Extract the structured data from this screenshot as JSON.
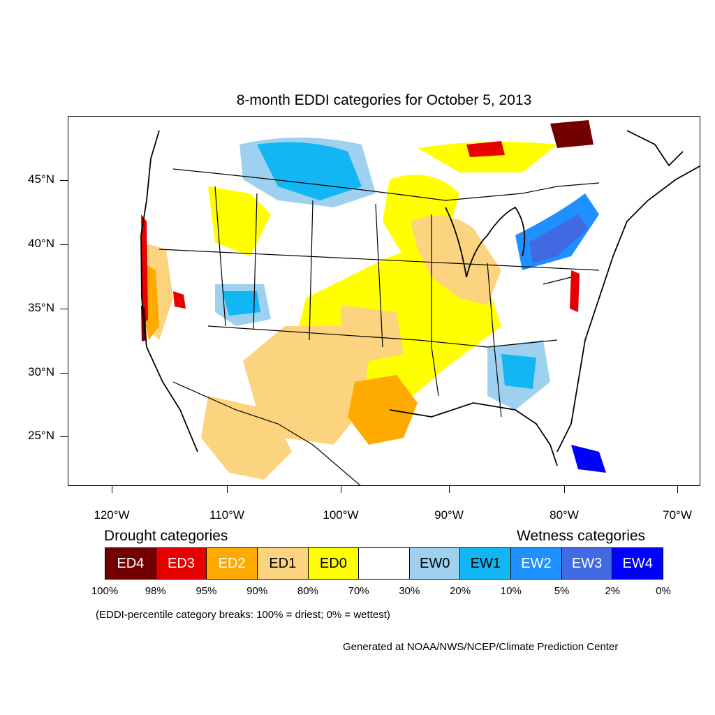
{
  "map": {
    "title": "8-month EDDI categories for October 5, 2013",
    "lat_labels": [
      "45°N",
      "40°N",
      "35°N",
      "30°N",
      "25°N"
    ],
    "lon_labels": [
      "120°W",
      "110°W",
      "100°W",
      "90°W",
      "80°W",
      "70°W"
    ]
  },
  "legend": {
    "drought_heading": "Drought categories",
    "wetness_heading": "Wetness categories",
    "categories": [
      {
        "label": "ED4",
        "color": "#730000",
        "text_color": "#ffffff"
      },
      {
        "label": "ED3",
        "color": "#e60000",
        "text_color": "#ffffff"
      },
      {
        "label": "ED2",
        "color": "#ffaa00",
        "text_color": "#ffffff"
      },
      {
        "label": "ED1",
        "color": "#fcd37f",
        "text_color": "#000000"
      },
      {
        "label": "ED0",
        "color": "#ffff00",
        "text_color": "#000000"
      },
      {
        "label": "",
        "color": "#ffffff",
        "text_color": "#000000"
      },
      {
        "label": "EW0",
        "color": "#9dd1ef",
        "text_color": "#000000"
      },
      {
        "label": "EW1",
        "color": "#12b6f3",
        "text_color": "#000000"
      },
      {
        "label": "EW2",
        "color": "#1e90ff",
        "text_color": "#ffffff"
      },
      {
        "label": "EW3",
        "color": "#4169e1",
        "text_color": "#ffffff"
      },
      {
        "label": "EW4",
        "color": "#0000ff",
        "text_color": "#ffffff"
      }
    ],
    "breaks": [
      "100%",
      "98%",
      "95%",
      "90%",
      "80%",
      "70%",
      "30%",
      "20%",
      "10%",
      "5%",
      "2%",
      "0%"
    ],
    "note": "(EDDI-percentile category breaks: 100% = driest; 0% = wettest)"
  },
  "credit": "Generated at NOAA/NWS/NCEP/Climate Prediction Center"
}
